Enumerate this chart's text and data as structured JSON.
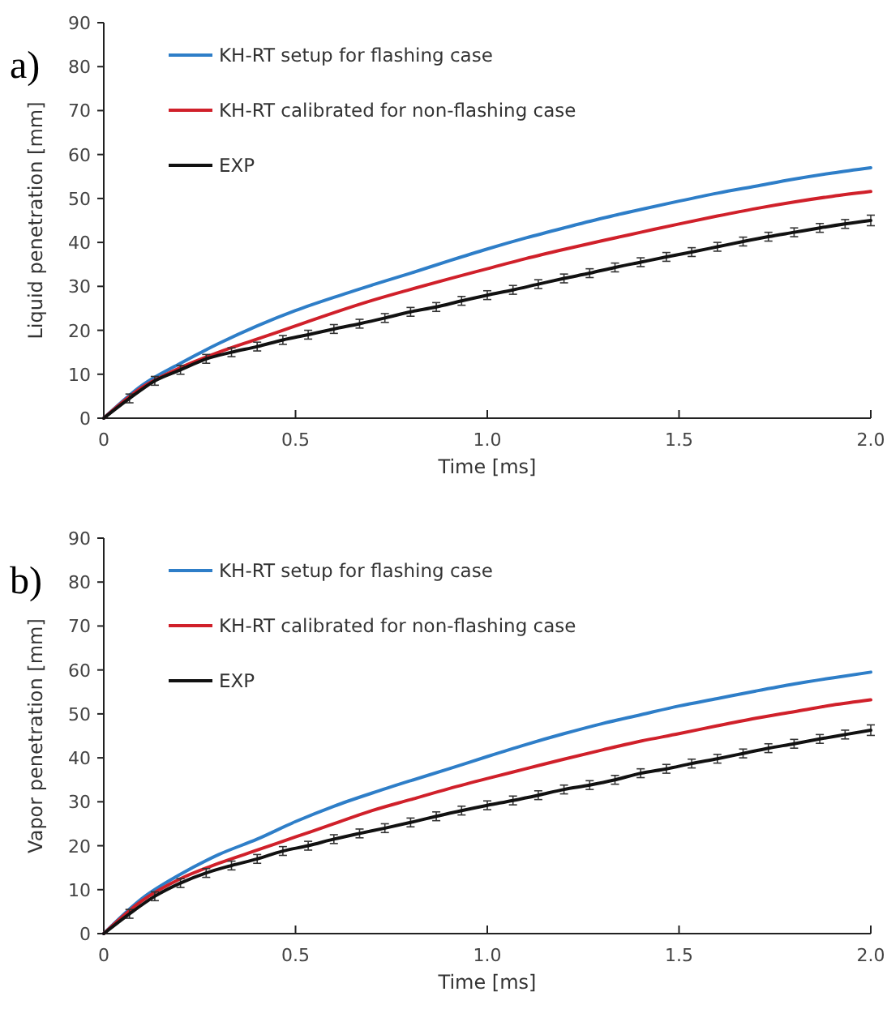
{
  "chart_data": [
    {
      "type": "line",
      "xlabel": "Time [ms]",
      "ylabel": "Liquid penetration [mm]",
      "annotations": [
        "a)"
      ],
      "xlim": [
        0,
        2
      ],
      "xticks": [
        0,
        {
          "value": 0.5,
          "label": "0.5"
        },
        {
          "value": 1,
          "label": "1.0"
        },
        {
          "value": 1.5,
          "label": "1.5"
        },
        {
          "value": 2,
          "label": "2.0"
        }
      ],
      "ylim": [
        0,
        90
      ],
      "yticks": [
        0,
        10,
        20,
        30,
        40,
        50,
        60,
        70,
        80,
        90
      ],
      "grid": false,
      "legend": "top left",
      "marker": "none",
      "line_style": "solid",
      "series": [
        {
          "name": "KH-RT setup for flashing case",
          "color": "#2e7ec8",
          "x": [
            0,
            0.1,
            0.2,
            0.3,
            0.4,
            0.5,
            0.6,
            0.7,
            0.8,
            0.9,
            1.0,
            1.1,
            1.2,
            1.3,
            1.4,
            1.5,
            1.6,
            1.7,
            1.8,
            1.9,
            2.0
          ],
          "values": [
            0,
            7.5,
            12.5,
            17,
            21,
            24.5,
            27.5,
            30.3,
            33,
            35.8,
            38.5,
            41,
            43.3,
            45.5,
            47.5,
            49.4,
            51.2,
            52.8,
            54.4,
            55.8,
            57
          ]
        },
        {
          "name": "KH-RT calibrated for non-flashing case",
          "color": "#d0202a",
          "x": [
            0,
            0.1,
            0.2,
            0.3,
            0.4,
            0.5,
            0.6,
            0.7,
            0.8,
            0.9,
            1.0,
            1.1,
            1.2,
            1.3,
            1.4,
            1.5,
            1.6,
            1.7,
            1.8,
            1.9,
            2.0
          ],
          "values": [
            0,
            7,
            11.5,
            15,
            18,
            21,
            24,
            26.8,
            29.3,
            31.7,
            34,
            36.3,
            38.4,
            40.4,
            42.3,
            44.2,
            46,
            47.7,
            49.2,
            50.5,
            51.6
          ]
        },
        {
          "name": "EXP",
          "color": "#111111",
          "x": [
            0,
            0.067,
            0.133,
            0.2,
            0.267,
            0.333,
            0.4,
            0.467,
            0.533,
            0.6,
            0.667,
            0.733,
            0.8,
            0.867,
            0.933,
            1.0,
            1.067,
            1.133,
            1.2,
            1.267,
            1.333,
            1.4,
            1.467,
            1.533,
            1.6,
            1.667,
            1.733,
            1.8,
            1.867,
            1.933,
            2.0
          ],
          "values": [
            0,
            4.5,
            8.5,
            11,
            13.5,
            15,
            16.3,
            17.8,
            19,
            20.3,
            21.5,
            22.8,
            24.2,
            25.3,
            26.7,
            28,
            29.2,
            30.5,
            31.8,
            33,
            34.3,
            35.5,
            36.7,
            37.8,
            39,
            40.2,
            41.3,
            42.3,
            43.3,
            44.2,
            45
          ],
          "errors": [
            null,
            1,
            1,
            1,
            1,
            1,
            1,
            1,
            1,
            1,
            1,
            1,
            1,
            1,
            1,
            1,
            1,
            1,
            1,
            1,
            1,
            1,
            1,
            1,
            1,
            1,
            1,
            1,
            1,
            1,
            1.2
          ]
        }
      ]
    },
    {
      "type": "line",
      "xlabel": "Time [ms]",
      "ylabel": "Vapor penetration [mm]",
      "annotations": [
        "b)"
      ],
      "xlim": [
        0,
        2
      ],
      "xticks": [
        0,
        {
          "value": 0.5,
          "label": "0.5"
        },
        {
          "value": 1,
          "label": "1.0"
        },
        {
          "value": 1.5,
          "label": "1.5"
        },
        {
          "value": 2,
          "label": "2.0"
        }
      ],
      "ylim": [
        0,
        90
      ],
      "yticks": [
        0,
        10,
        20,
        30,
        40,
        50,
        60,
        70,
        80,
        90
      ],
      "grid": false,
      "legend": "top left",
      "marker": "none",
      "line_style": "solid",
      "series": [
        {
          "name": "KH-RT setup for flashing case",
          "color": "#2e7ec8",
          "x": [
            0,
            0.1,
            0.2,
            0.3,
            0.4,
            0.5,
            0.6,
            0.7,
            0.8,
            0.9,
            1.0,
            1.1,
            1.2,
            1.3,
            1.4,
            1.5,
            1.6,
            1.7,
            1.8,
            1.9,
            2.0
          ],
          "values": [
            0,
            8,
            13.5,
            18,
            21.5,
            25.5,
            29,
            32,
            34.8,
            37.5,
            40.3,
            43,
            45.5,
            47.8,
            49.8,
            51.8,
            53.5,
            55.2,
            56.8,
            58.2,
            59.5
          ]
        },
        {
          "name": "KH-RT calibrated for non-flashing case",
          "color": "#d0202a",
          "x": [
            0,
            0.1,
            0.2,
            0.3,
            0.4,
            0.5,
            0.6,
            0.7,
            0.8,
            0.9,
            1.0,
            1.1,
            1.2,
            1.3,
            1.4,
            1.5,
            1.6,
            1.7,
            1.8,
            1.9,
            2.0
          ],
          "values": [
            0,
            7.5,
            12.5,
            16,
            19,
            22,
            25,
            28,
            30.5,
            33,
            35.3,
            37.5,
            39.7,
            41.8,
            43.8,
            45.5,
            47.3,
            49,
            50.5,
            52,
            53.2
          ]
        },
        {
          "name": "EXP",
          "color": "#111111",
          "x": [
            0,
            0.067,
            0.133,
            0.2,
            0.267,
            0.333,
            0.4,
            0.467,
            0.533,
            0.6,
            0.667,
            0.733,
            0.8,
            0.867,
            0.933,
            1.0,
            1.067,
            1.133,
            1.2,
            1.267,
            1.333,
            1.4,
            1.467,
            1.533,
            1.6,
            1.667,
            1.733,
            1.8,
            1.867,
            1.933,
            2.0
          ],
          "values": [
            0,
            4.5,
            8.5,
            11.5,
            13.8,
            15.5,
            17,
            18.8,
            20,
            21.5,
            22.8,
            24,
            25.3,
            26.7,
            28,
            29.2,
            30.3,
            31.5,
            32.8,
            33.8,
            35,
            36.5,
            37.5,
            38.7,
            39.8,
            41,
            42.2,
            43.2,
            44.3,
            45.3,
            46.3
          ],
          "errors": [
            null,
            1,
            1,
            1,
            1,
            1,
            1,
            1,
            1,
            1,
            1,
            1,
            1,
            1,
            1,
            1,
            1,
            1,
            1,
            1,
            1,
            1,
            1,
            1,
            1,
            1,
            1,
            1,
            1,
            1,
            1.2
          ]
        }
      ]
    }
  ]
}
